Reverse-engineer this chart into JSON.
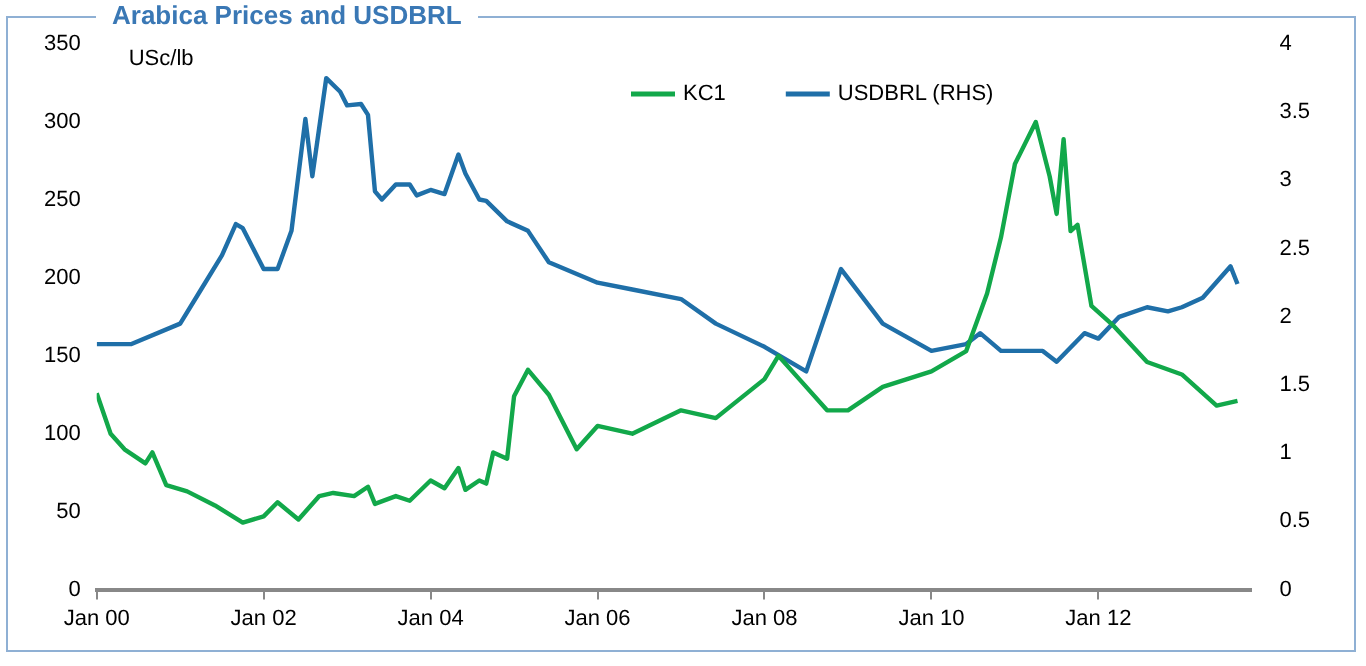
{
  "chart_data": {
    "type": "line",
    "title": "Arabica Prices and USDBRL",
    "ylabel": "USc/lb",
    "xlim": [
      "2000-01",
      "2013-11"
    ],
    "xticks": [
      {
        "value": "2000-01",
        "label": "Jan 00"
      },
      {
        "value": "2002-01",
        "label": "Jan 02"
      },
      {
        "value": "2004-01",
        "label": "Jan 04"
      },
      {
        "value": "2006-01",
        "label": "Jan 06"
      },
      {
        "value": "2008-01",
        "label": "Jan 08"
      },
      {
        "value": "2010-01",
        "label": "Jan 10"
      },
      {
        "value": "2012-01",
        "label": "Jan 12"
      }
    ],
    "ylim": [
      0,
      350
    ],
    "yticks": [
      0,
      50,
      100,
      150,
      200,
      250,
      300,
      350
    ],
    "y2lim": [
      0,
      4
    ],
    "y2ticks": [
      0,
      0.5,
      1,
      1.5,
      2,
      2.5,
      3,
      3.5,
      4
    ],
    "grid": false,
    "legend": "top right",
    "marker": "none",
    "line_style": "solid",
    "series": [
      {
        "name": "KC1",
        "color": "#12a84a",
        "x": [
          "2000-01",
          "2000-03",
          "2000-05",
          "2000-08",
          "2000-09",
          "2000-11",
          "2001-02",
          "2001-06",
          "2001-10",
          "2002-01",
          "2002-03",
          "2002-06",
          "2002-09",
          "2002-11",
          "2003-02",
          "2003-04",
          "2003-05",
          "2003-08",
          "2003-10",
          "2004-01",
          "2004-03",
          "2004-05",
          "2004-06",
          "2004-08",
          "2004-09",
          "2004-10",
          "2004-12",
          "2005-01",
          "2005-03",
          "2005-06",
          "2005-10",
          "2006-01",
          "2006-06",
          "2007-01",
          "2007-06",
          "2008-01",
          "2008-03",
          "2008-06",
          "2008-10",
          "2009-01",
          "2009-06",
          "2010-01",
          "2010-06",
          "2010-09",
          "2010-11",
          "2011-01",
          "2011-04",
          "2011-06",
          "2011-07",
          "2011-08",
          "2011-09",
          "2011-10",
          "2011-12",
          "2012-03",
          "2012-08",
          "2013-01",
          "2013-06",
          "2013-09"
        ],
        "values": [
          126,
          100,
          90,
          81,
          88,
          67,
          63,
          54,
          43,
          47,
          56,
          45,
          60,
          62,
          60,
          66,
          55,
          60,
          57,
          70,
          65,
          78,
          64,
          70,
          68,
          88,
          84,
          124,
          141,
          125,
          90,
          105,
          100,
          115,
          110,
          135,
          150,
          135,
          115,
          115,
          130,
          140,
          153,
          190,
          226,
          273,
          300,
          265,
          241,
          289,
          230,
          234,
          182,
          170,
          146,
          138,
          118,
          121
        ]
      },
      {
        "name": "USDBRL (RHS)",
        "color": "#1f6fa8",
        "axis": "y2",
        "x": [
          "2000-01",
          "2000-06",
          "2001-01",
          "2001-04",
          "2001-07",
          "2001-09",
          "2001-10",
          "2002-01",
          "2002-03",
          "2002-05",
          "2002-07",
          "2002-08",
          "2002-10",
          "2002-12",
          "2003-01",
          "2003-03",
          "2003-04",
          "2003-05",
          "2003-06",
          "2003-08",
          "2003-10",
          "2003-11",
          "2004-01",
          "2004-03",
          "2004-05",
          "2004-06",
          "2004-08",
          "2004-09",
          "2004-12",
          "2005-03",
          "2005-06",
          "2006-01",
          "2006-06",
          "2007-01",
          "2007-06",
          "2008-01",
          "2008-07",
          "2008-12",
          "2009-06",
          "2010-01",
          "2010-06",
          "2010-08",
          "2010-11",
          "2011-05",
          "2011-07",
          "2011-11",
          "2012-01",
          "2012-04",
          "2012-08",
          "2012-11",
          "2013-01",
          "2013-04",
          "2013-08",
          "2013-09"
        ],
        "values": [
          1.8,
          1.8,
          1.95,
          2.2,
          2.45,
          2.68,
          2.65,
          2.35,
          2.35,
          2.63,
          3.45,
          3.03,
          3.75,
          3.65,
          3.55,
          3.56,
          3.48,
          2.92,
          2.86,
          2.97,
          2.97,
          2.89,
          2.93,
          2.9,
          3.19,
          3.05,
          2.86,
          2.85,
          2.7,
          2.63,
          2.4,
          2.25,
          2.2,
          2.13,
          1.95,
          1.78,
          1.6,
          2.35,
          1.95,
          1.75,
          1.8,
          1.88,
          1.75,
          1.75,
          1.67,
          1.88,
          1.84,
          2.0,
          2.07,
          2.04,
          2.07,
          2.14,
          2.37,
          2.24
        ]
      }
    ]
  }
}
